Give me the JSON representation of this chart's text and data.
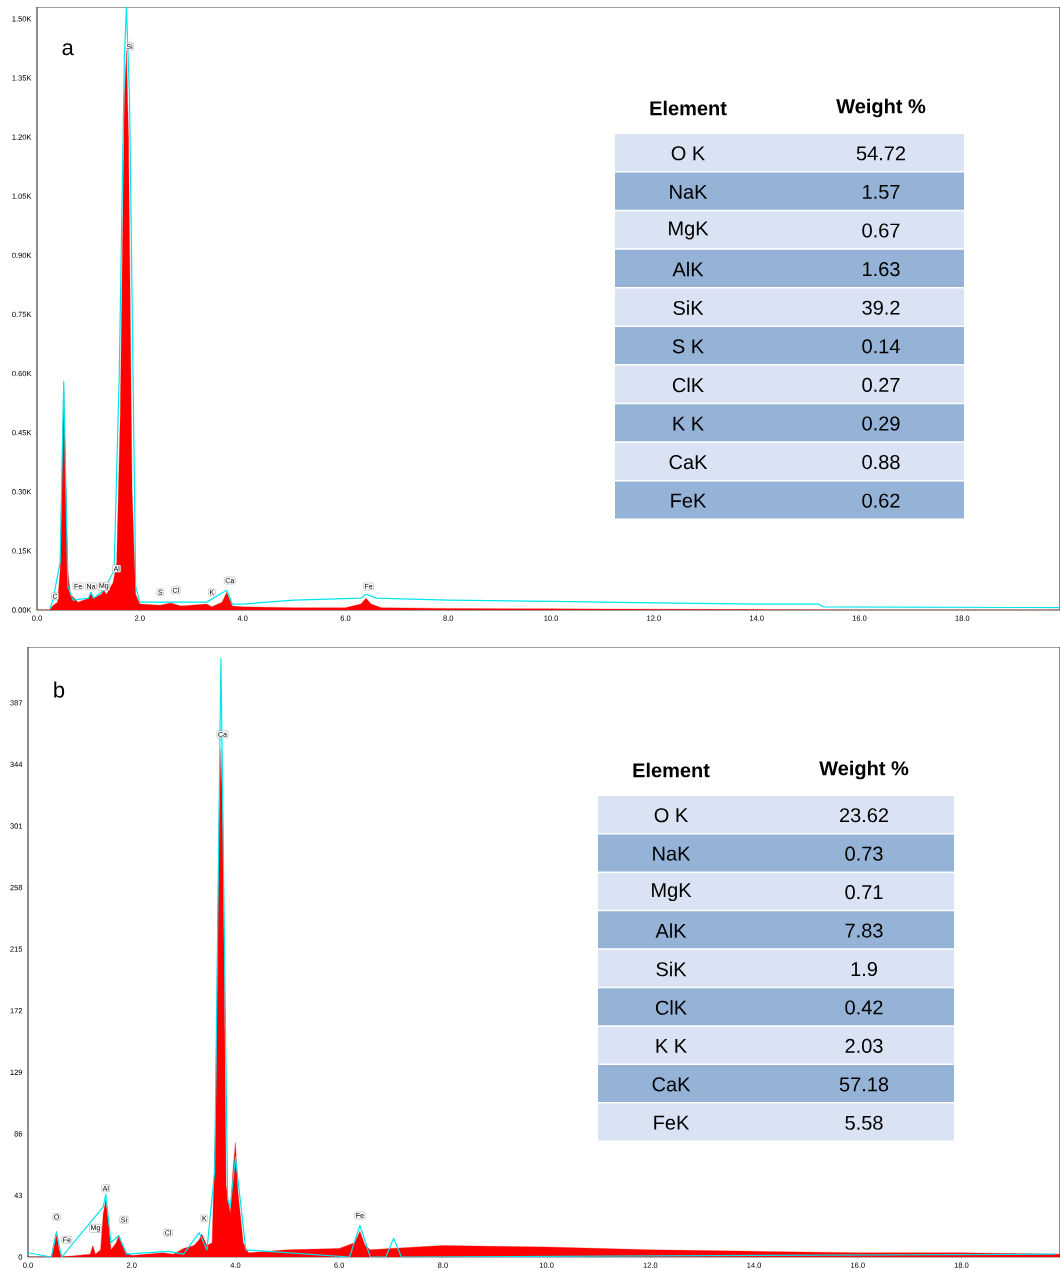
{
  "chart_data": [
    {
      "type": "area",
      "title": "a",
      "xlim": [
        0,
        19.9
      ],
      "ylim": [
        0,
        1530
      ],
      "xticks": [
        {
          "value": 0,
          "label": "0.0"
        },
        {
          "value": 2,
          "label": "2.0"
        },
        {
          "value": 4,
          "label": "4.0"
        },
        {
          "value": 6,
          "label": "6.0"
        },
        {
          "value": 8,
          "label": "8.0"
        },
        {
          "value": 10,
          "label": "10.0"
        },
        {
          "value": 12,
          "label": "12.0"
        },
        {
          "value": 14,
          "label": "14.0"
        },
        {
          "value": 16,
          "label": "16.0"
        },
        {
          "value": 18,
          "label": "18.0"
        }
      ],
      "yticks": [
        {
          "value": 0,
          "label": "0.00K"
        },
        {
          "value": 150,
          "label": "0.15K"
        },
        {
          "value": 300,
          "label": "0.30K"
        },
        {
          "value": 450,
          "label": "0.45K"
        },
        {
          "value": 600,
          "label": "0.60K"
        },
        {
          "value": 750,
          "label": "0.75K"
        },
        {
          "value": 900,
          "label": "0.90K"
        },
        {
          "value": 1050,
          "label": "1.05K"
        },
        {
          "value": 1200,
          "label": "1.20K"
        },
        {
          "value": 1350,
          "label": "1.35K"
        },
        {
          "value": 1500,
          "label": "1.50K"
        }
      ],
      "series": [
        {
          "type": "area",
          "color": "#ff0000",
          "x": [
            0,
            0.25,
            0.3,
            0.4,
            0.45,
            0.5,
            0.52,
            0.55,
            0.6,
            0.65,
            0.8,
            1.0,
            1.05,
            1.1,
            1.25,
            1.3,
            1.35,
            1.48,
            1.55,
            1.62,
            1.7,
            1.74,
            1.78,
            1.85,
            1.92,
            2.0,
            2.4,
            2.6,
            2.8,
            3.3,
            3.4,
            3.6,
            3.69,
            3.8,
            4.0,
            5.0,
            6.0,
            6.3,
            6.4,
            6.5,
            6.7,
            8.0,
            10.0,
            12.0,
            14.0,
            16.0,
            19.9
          ],
          "values": [
            0,
            0,
            10,
            20,
            100,
            450,
            560,
            400,
            100,
            40,
            20,
            30,
            45,
            30,
            40,
            50,
            40,
            70,
            120,
            500,
            1300,
            1420,
            1200,
            300,
            40,
            15,
            12,
            18,
            10,
            15,
            8,
            20,
            45,
            10,
            8,
            6,
            6,
            15,
            30,
            15,
            6,
            4,
            3,
            2,
            1,
            0,
            0
          ]
        },
        {
          "type": "line",
          "color": "#00e5ee",
          "x": [
            0.25,
            0.3,
            0.45,
            0.52,
            0.6,
            0.7,
            1.0,
            1.05,
            1.1,
            1.3,
            1.5,
            1.6,
            1.7,
            1.74,
            1.8,
            1.92,
            2.0,
            2.6,
            3.3,
            3.69,
            3.8,
            4.0,
            5.0,
            6.3,
            6.4,
            6.6,
            8.0,
            10.0,
            12.0,
            14.0,
            15.2,
            15.3,
            19.9
          ],
          "values": [
            3,
            20,
            120,
            580,
            60,
            25,
            30,
            45,
            30,
            50,
            100,
            600,
            1400,
            1530,
            1300,
            60,
            20,
            20,
            20,
            50,
            15,
            15,
            25,
            30,
            40,
            30,
            25,
            22,
            18,
            15,
            15,
            8,
            6
          ]
        }
      ],
      "annotations": [
        {
          "text": "C",
          "x": 0.35,
          "y": 35
        },
        {
          "text": "Fe",
          "x": 0.8,
          "y": 60
        },
        {
          "text": "Na",
          "x": 1.05,
          "y": 60
        },
        {
          "text": "Mg",
          "x": 1.3,
          "y": 60
        },
        {
          "text": "Al",
          "x": 1.55,
          "y": 105
        },
        {
          "text": "Si",
          "x": 1.8,
          "y": 1430
        },
        {
          "text": "S",
          "x": 2.4,
          "y": 45
        },
        {
          "text": "Cl",
          "x": 2.7,
          "y": 50
        },
        {
          "text": "K",
          "x": 3.4,
          "y": 45
        },
        {
          "text": "Ca",
          "x": 3.75,
          "y": 75
        },
        {
          "text": "Fe",
          "x": 6.45,
          "y": 60
        }
      ]
    },
    {
      "type": "other",
      "xlabel": "Element",
      "ylabel": "Weight %",
      "data_labels": true,
      "categories": [
        "O K",
        "NaK",
        "MgK",
        "AlK",
        "SiK",
        "S K",
        "ClK",
        "K K",
        "CaK",
        "FeK"
      ],
      "values": [
        54.72,
        1.57,
        0.67,
        1.63,
        39.2,
        0.14,
        0.27,
        0.29,
        0.88,
        0.62
      ],
      "colors": [
        "#dae3f3",
        "#95b3d7",
        "#dae3f3",
        "#95b3d7",
        "#dae3f3",
        "#95b3d7",
        "#dae3f3",
        "#95b3d7",
        "#dae3f3",
        "#95b3d7"
      ]
    },
    {
      "type": "area",
      "title": "b",
      "xlim": [
        0,
        19.9
      ],
      "ylim": [
        0,
        426
      ],
      "xticks": [
        {
          "value": 0,
          "label": "0.0"
        },
        {
          "value": 2,
          "label": "2.0"
        },
        {
          "value": 4,
          "label": "4.0"
        },
        {
          "value": 6,
          "label": "6.0"
        },
        {
          "value": 8,
          "label": "8.0"
        },
        {
          "value": 10,
          "label": "10.0"
        },
        {
          "value": 12,
          "label": "12.0"
        },
        {
          "value": 14,
          "label": "14.0"
        },
        {
          "value": 16,
          "label": "16.0"
        },
        {
          "value": 18,
          "label": "18.0"
        }
      ],
      "yticks": [
        0,
        43,
        86,
        129,
        172,
        215,
        258,
        301,
        344,
        387
      ],
      "series": [
        {
          "type": "area",
          "color": "#ff0000",
          "x": [
            0,
            0.45,
            0.5,
            0.55,
            0.6,
            0.65,
            1.2,
            1.25,
            1.3,
            1.4,
            1.45,
            1.5,
            1.55,
            1.6,
            1.7,
            1.75,
            1.8,
            1.9,
            2.0,
            2.6,
            2.8,
            3.0,
            3.2,
            3.3,
            3.35,
            3.45,
            3.55,
            3.62,
            3.68,
            3.72,
            3.76,
            3.82,
            3.9,
            3.95,
            4.0,
            4.05,
            4.15,
            4.25,
            5.0,
            6.0,
            6.3,
            6.4,
            6.5,
            6.6,
            7.0,
            8.0,
            10.0,
            12.0,
            14.0,
            16.0,
            18.0,
            19.9
          ],
          "values": [
            0,
            0,
            10,
            18,
            5,
            0,
            2,
            8,
            2,
            5,
            30,
            40,
            25,
            5,
            10,
            15,
            10,
            3,
            1,
            3,
            2,
            6,
            8,
            12,
            16,
            8,
            10,
            100,
            300,
            355,
            300,
            50,
            30,
            60,
            80,
            45,
            10,
            3,
            5,
            6,
            10,
            18,
            8,
            5,
            6,
            8,
            7,
            5,
            4,
            3,
            3,
            2
          ]
        },
        {
          "type": "line",
          "color": "#00e5ee",
          "x": [
            0,
            0.45,
            0.55,
            0.65,
            1.45,
            1.5,
            1.6,
            1.75,
            1.9,
            2.7,
            3.0,
            3.3,
            3.45,
            3.6,
            3.72,
            3.85,
            3.9,
            4.0,
            4.2,
            6.2,
            6.4,
            6.6,
            6.9,
            7.05,
            7.2,
            19.8
          ],
          "values": [
            3,
            0,
            17,
            0,
            35,
            44,
            10,
            15,
            2,
            4,
            2,
            17,
            5,
            60,
            418,
            40,
            35,
            70,
            5,
            0,
            22,
            0,
            0,
            13,
            0,
            2
          ]
        }
      ],
      "annotations": [
        {
          "text": "O",
          "x": 0.55,
          "y": 28
        },
        {
          "text": "Fe",
          "x": 0.75,
          "y": 12
        },
        {
          "text": "Mg",
          "x": 1.3,
          "y": 20
        },
        {
          "text": "Al",
          "x": 1.5,
          "y": 48
        },
        {
          "text": "Si",
          "x": 1.85,
          "y": 26
        },
        {
          "text": "Cl",
          "x": 2.7,
          "y": 17
        },
        {
          "text": "K",
          "x": 3.4,
          "y": 27
        },
        {
          "text": "Ca",
          "x": 3.75,
          "y": 365
        },
        {
          "text": "Fe",
          "x": 6.4,
          "y": 29
        }
      ]
    },
    {
      "type": "other",
      "xlabel": "Element",
      "ylabel": "Weight %",
      "data_labels": true,
      "categories": [
        "O K",
        "NaK",
        "MgK",
        "AlK",
        "SiK",
        "ClK",
        "K K",
        "CaK",
        "FeK"
      ],
      "values": [
        23.62,
        0.73,
        0.71,
        7.83,
        1.9,
        0.42,
        2.03,
        57.18,
        5.58
      ],
      "colors": [
        "#dae3f3",
        "#95b3d7",
        "#dae3f3",
        "#95b3d7",
        "#dae3f3",
        "#95b3d7",
        "#dae3f3",
        "#95b3d7",
        "#dae3f3"
      ]
    }
  ]
}
